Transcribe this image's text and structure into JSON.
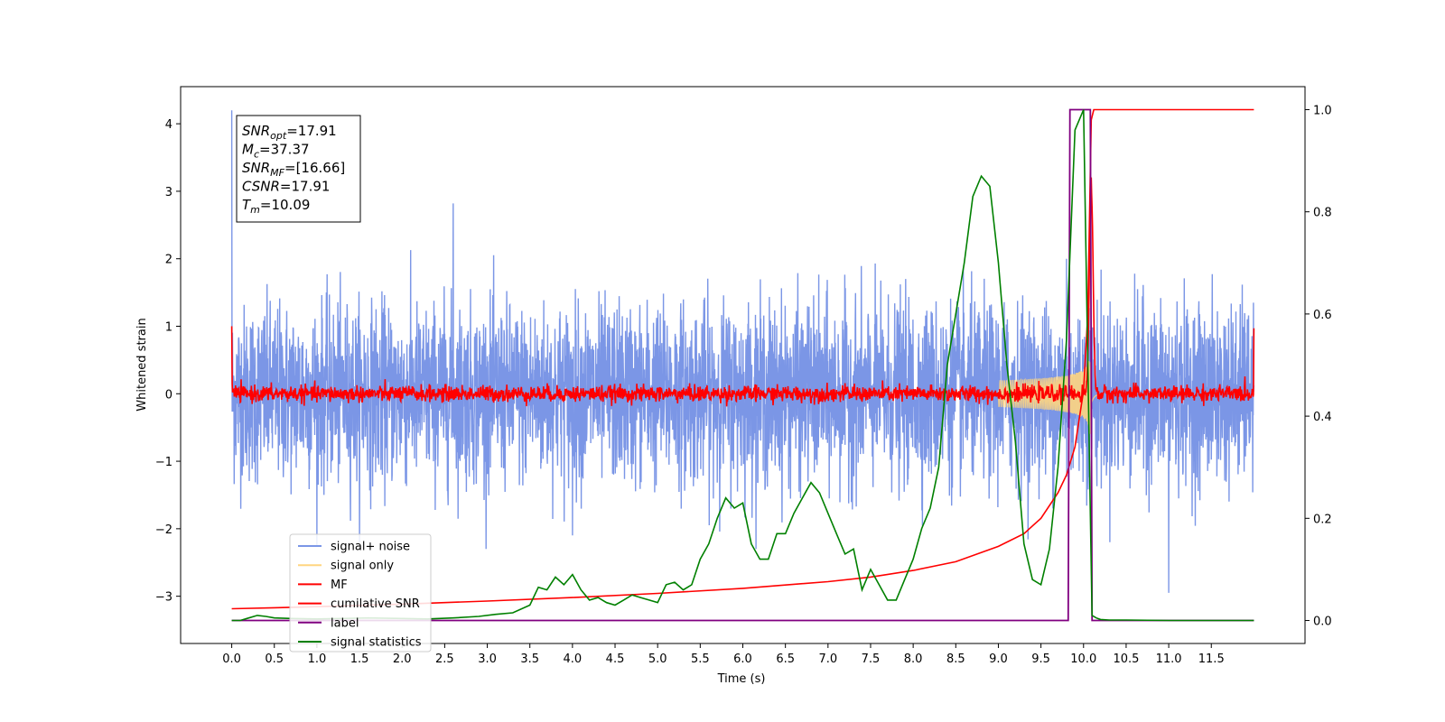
{
  "chart_data": {
    "type": "line",
    "xlabel": "Time (s)",
    "ylabel": "Whitened strain",
    "xlim": [
      -0.6,
      12.6
    ],
    "ylim": [
      -3.7,
      4.55
    ],
    "y2lim": [
      -0.045,
      1.045
    ],
    "x_ticks": [
      "0.0",
      "0.5",
      "1.0",
      "1.5",
      "2.0",
      "2.5",
      "3.0",
      "3.5",
      "4.0",
      "4.5",
      "5.0",
      "5.5",
      "6.0",
      "6.5",
      "7.0",
      "7.5",
      "8.0",
      "8.5",
      "9.0",
      "9.5",
      "10.0",
      "10.5",
      "11.0",
      "11.5"
    ],
    "x_tick_values": [
      0,
      0.5,
      1,
      1.5,
      2,
      2.5,
      3,
      3.5,
      4,
      4.5,
      5,
      5.5,
      6,
      6.5,
      7,
      7.5,
      8,
      8.5,
      9,
      9.5,
      10,
      10.5,
      11,
      11.5
    ],
    "y_ticks": [
      "−3",
      "−2",
      "−1",
      "0",
      "1",
      "2",
      "3",
      "4"
    ],
    "y_tick_values": [
      -3,
      -2,
      -1,
      0,
      1,
      2,
      3,
      4
    ],
    "y2_ticks": [
      "0.0",
      "0.2",
      "0.4",
      "0.6",
      "0.8",
      "1.0"
    ],
    "y2_tick_values": [
      0,
      0.2,
      0.4,
      0.6,
      0.8,
      1.0
    ],
    "grid": false,
    "legend_position": "lower-left",
    "stats_box": {
      "lines": [
        {
          "base": "SNR",
          "sub": "opt",
          "rest": "=17.91"
        },
        {
          "base": "M",
          "sub": "c",
          "rest": "=37.37"
        },
        {
          "base": "SNR",
          "sub": "MF",
          "rest": "=[16.66]"
        },
        {
          "base": "CSNR",
          "sub": "",
          "rest": "=17.91"
        },
        {
          "base": "T",
          "sub": "m",
          "rest": "=10.09"
        }
      ]
    },
    "series": [
      {
        "name": "signal+ noise",
        "color": "#7b96e6",
        "axis": "left",
        "description_values": {
          "x_range": [
            0,
            12
          ],
          "mean": 0.0,
          "std": 0.65,
          "peaks": [
            [
              0.0,
              4.2
            ],
            [
              2.6,
              2.82
            ],
            [
              4.0,
              -2.1
            ],
            [
              11.0,
              -2.95
            ],
            [
              9.8,
              2.0
            ]
          ]
        }
      },
      {
        "name": "signal only",
        "color": "#ffd580",
        "axis": "left",
        "chirp": {
          "start": 9.0,
          "merger": 10.09,
          "peak_amplitude": 1.0
        }
      },
      {
        "name": "MF",
        "color": "#ff0000",
        "axis": "left",
        "noise_level": 0.06,
        "peaks": [
          [
            0.0,
            1.0
          ],
          [
            10.09,
            3.15
          ],
          [
            12.0,
            0.97
          ]
        ]
      },
      {
        "name": "cumilative SNR",
        "color": "#ff0000",
        "axis": "right",
        "x": [
          0,
          0.5,
          1,
          2,
          3,
          4,
          5,
          6,
          7,
          7.5,
          8,
          8.5,
          9,
          9.3,
          9.5,
          9.7,
          9.8,
          9.9,
          10.0,
          10.05,
          10.09,
          10.12,
          12.0
        ],
        "y": [
          0.023,
          0.025,
          0.027,
          0.032,
          0.038,
          0.045,
          0.053,
          0.063,
          0.076,
          0.085,
          0.098,
          0.115,
          0.145,
          0.17,
          0.2,
          0.25,
          0.285,
          0.34,
          0.45,
          0.6,
          0.98,
          1.0,
          1.0
        ]
      },
      {
        "name": "label",
        "color": "#800080",
        "axis": "right",
        "x": [
          0,
          9.82,
          9.84,
          10.08,
          10.1,
          12.0
        ],
        "y": [
          0,
          0,
          1,
          1,
          0,
          0
        ]
      },
      {
        "name": "signal statistics",
        "color": "#008000",
        "axis": "right",
        "x": [
          0,
          0.1,
          0.2,
          0.3,
          0.4,
          0.5,
          0.7,
          1.0,
          1.3,
          1.6,
          2.0,
          2.3,
          2.6,
          2.9,
          3.1,
          3.3,
          3.5,
          3.6,
          3.7,
          3.8,
          3.9,
          4.0,
          4.1,
          4.2,
          4.3,
          4.4,
          4.5,
          4.6,
          4.7,
          4.8,
          4.9,
          5.0,
          5.1,
          5.2,
          5.3,
          5.4,
          5.5,
          5.6,
          5.7,
          5.8,
          5.9,
          6.0,
          6.1,
          6.2,
          6.3,
          6.4,
          6.5,
          6.6,
          6.7,
          6.8,
          6.9,
          7.0,
          7.1,
          7.2,
          7.3,
          7.4,
          7.5,
          7.6,
          7.7,
          7.8,
          7.9,
          8.0,
          8.1,
          8.2,
          8.3,
          8.4,
          8.5,
          8.6,
          8.7,
          8.8,
          8.9,
          9.0,
          9.1,
          9.2,
          9.3,
          9.4,
          9.5,
          9.6,
          9.7,
          9.8,
          9.9,
          10.0,
          10.1,
          10.15,
          10.2,
          10.3,
          10.5,
          11.0,
          12.0
        ],
        "y": [
          0,
          0,
          0.005,
          0.01,
          0.008,
          0.005,
          0.004,
          0.003,
          0.004,
          0.005,
          0.004,
          0.003,
          0.005,
          0.008,
          0.012,
          0.015,
          0.03,
          0.065,
          0.06,
          0.085,
          0.07,
          0.09,
          0.06,
          0.04,
          0.045,
          0.035,
          0.03,
          0.04,
          0.05,
          0.045,
          0.04,
          0.035,
          0.07,
          0.075,
          0.06,
          0.07,
          0.12,
          0.15,
          0.2,
          0.24,
          0.22,
          0.23,
          0.15,
          0.12,
          0.12,
          0.17,
          0.17,
          0.21,
          0.24,
          0.27,
          0.25,
          0.21,
          0.17,
          0.13,
          0.14,
          0.06,
          0.1,
          0.07,
          0.04,
          0.04,
          0.08,
          0.12,
          0.18,
          0.22,
          0.3,
          0.5,
          0.6,
          0.7,
          0.83,
          0.87,
          0.85,
          0.7,
          0.5,
          0.35,
          0.15,
          0.08,
          0.07,
          0.14,
          0.3,
          0.55,
          0.96,
          1.0,
          0.01,
          0.005,
          0.002,
          0.001,
          0.001,
          0.0,
          0.0
        ]
      }
    ]
  }
}
